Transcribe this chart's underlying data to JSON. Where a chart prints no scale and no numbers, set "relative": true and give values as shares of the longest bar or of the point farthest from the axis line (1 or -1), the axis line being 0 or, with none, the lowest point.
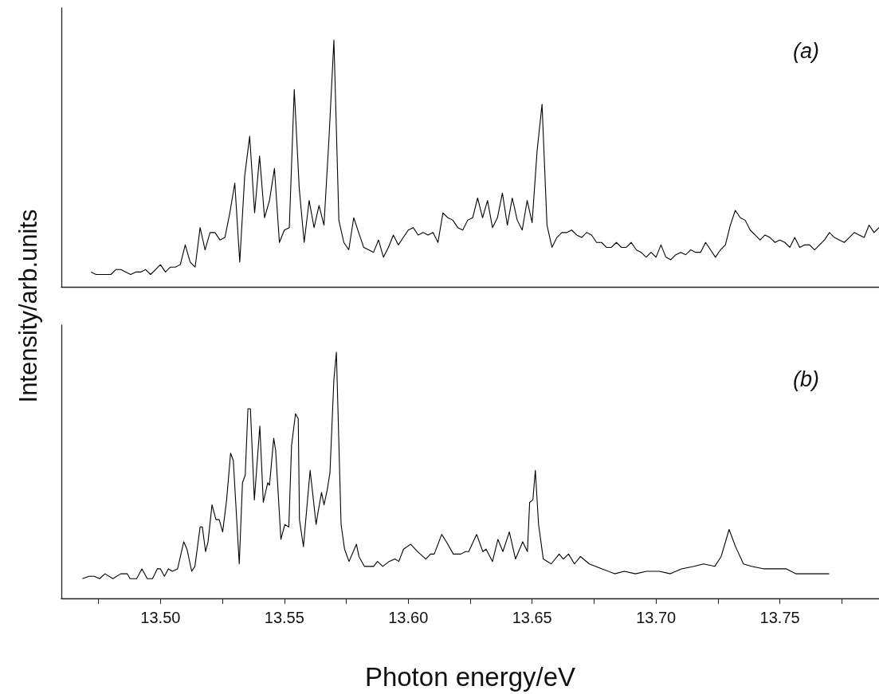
{
  "chart_data": [
    {
      "type": "line",
      "relative": true,
      "tick_labels": false,
      "ylabel": "Intensity/arb.units",
      "annotations": [
        "(a)"
      ],
      "categories": [
        null,
        null,
        null,
        null,
        null,
        null,
        null,
        null,
        null,
        null,
        null,
        null,
        null,
        null,
        null,
        null,
        null,
        null,
        null,
        null,
        null,
        null,
        null,
        null,
        null,
        null,
        null,
        null,
        null,
        null,
        null,
        null,
        null,
        null,
        null,
        null,
        null,
        null,
        null,
        null,
        null,
        null,
        null,
        null,
        null,
        null,
        null,
        null,
        null,
        null,
        null,
        null,
        null,
        null,
        null,
        null,
        null,
        null,
        null,
        null,
        null,
        null,
        null,
        null,
        null,
        null,
        null,
        null,
        null,
        null,
        null,
        null,
        null,
        null,
        null,
        null,
        null,
        null,
        null,
        null,
        null,
        null,
        null,
        null,
        null,
        null,
        null,
        null,
        null,
        null,
        null,
        null,
        null,
        null,
        null,
        null,
        null,
        null,
        null,
        null,
        null,
        null,
        null,
        null,
        null,
        null,
        null,
        null,
        null,
        null,
        null,
        null,
        null,
        null,
        null,
        null,
        null,
        null,
        null,
        null,
        null,
        null,
        null,
        null,
        null,
        null,
        null,
        null,
        null,
        null,
        null,
        null,
        null,
        null,
        null,
        null,
        null,
        null,
        null,
        null,
        null,
        null,
        null,
        null,
        null,
        null,
        null,
        null,
        null,
        null,
        null,
        null,
        null,
        null,
        null,
        null,
        null,
        null,
        null,
        null,
        null,
        null,
        null,
        null,
        null,
        null
      ],
      "series": [
        {
          "color": "#000000",
          "values": [
            null,
            null,
            null,
            null,
            null,
            null,
            0.06,
            0.05,
            0.05,
            0.05,
            0.05,
            0.07,
            0.07,
            0.06,
            0.05,
            0.06,
            0.06,
            0.07,
            0.05,
            0.07,
            0.09,
            0.06,
            0.08,
            0.08,
            0.09,
            0.17,
            0.1,
            0.08,
            0.24,
            0.15,
            0.22,
            0.22,
            0.19,
            0.2,
            0.3,
            0.42,
            0.1,
            0.45,
            0.61,
            0.3,
            0.53,
            0.28,
            0.35,
            0.48,
            0.18,
            0.23,
            0.24,
            0.8,
            0.4,
            0.18,
            0.35,
            0.24,
            0.33,
            0.25,
            0.6,
            1,
            0.27,
            0.18,
            0.15,
            0.28,
            0.22,
            0.16,
            0.15,
            0.14,
            0.19,
            0.12,
            0.16,
            0.21,
            0.17,
            0.2,
            0.23,
            0.24,
            0.21,
            0.22,
            0.21,
            0.22,
            0.18,
            0.3,
            0.28,
            0.27,
            0.24,
            0.23,
            0.27,
            0.28,
            0.36,
            0.28,
            0.35,
            0.24,
            0.28,
            0.38,
            0.25,
            0.36,
            0.27,
            0.23,
            0.35,
            0.26,
            0.55,
            0.74,
            0.25,
            0.16,
            0.2,
            0.22,
            0.22,
            0.23,
            0.21,
            0.2,
            0.22,
            0.21,
            0.18,
            0.18,
            0.16,
            0.16,
            0.18,
            0.16,
            0.16,
            0.18,
            0.15,
            0.14,
            0.12,
            0.14,
            0.12,
            0.17,
            0.12,
            0.11,
            0.13,
            0.14,
            0.13,
            0.15,
            0.14,
            0.14,
            0.18,
            0.15,
            0.12,
            0.15,
            0.17,
            0.25,
            0.31,
            0.28,
            0.27,
            0.23,
            0.21,
            0.19,
            0.21,
            0.2,
            0.18,
            0.19,
            0.18,
            0.16,
            0.2,
            0.16,
            0.17,
            0.17,
            0.15,
            0.17,
            0.19,
            0.22,
            0.2,
            0.19,
            0.18,
            0.2,
            0.22,
            0.21,
            0.2,
            0.25,
            0.22,
            0.24
          ]
        }
      ]
    },
    {
      "type": "line",
      "relative": true,
      "xlim": [
        13.46,
        13.79
      ],
      "tick_labels": "x",
      "xlabel": "Photon energy/eV",
      "annotations": [
        "(b)"
      ],
      "xticks": [
        {
          "value": 13.475,
          "label": null
        },
        {
          "value": 13.5,
          "label": "13.50"
        },
        {
          "value": 13.525,
          "label": null
        },
        13.55,
        {
          "value": 13.575,
          "label": null
        },
        {
          "value": 13.6,
          "label": "13.60"
        },
        {
          "value": 13.625,
          "label": null
        },
        13.65,
        {
          "value": 13.675,
          "label": null
        },
        {
          "value": 13.7,
          "label": "13.70"
        },
        {
          "value": 13.725,
          "label": null
        },
        13.75,
        {
          "value": 13.775,
          "label": null
        }
      ],
      "series": [
        {
          "color": "#000000",
          "x": [
            13.4685,
            13.4712,
            13.4733,
            13.4754,
            13.4776,
            13.4808,
            13.484,
            13.4866,
            13.4877,
            13.4904,
            13.4925,
            13.4947,
            13.4968,
            13.4987,
            13.5,
            13.5016,
            13.5032,
            13.5048,
            13.5069,
            13.5094,
            13.5107,
            13.5126,
            13.5139,
            13.516,
            13.5169,
            13.5182,
            13.5192,
            13.5208,
            13.5224,
            13.5237,
            13.5251,
            13.5267,
            13.5283,
            13.5294,
            13.5318,
            13.5331,
            13.5342,
            13.5353,
            13.5363,
            13.5379,
            13.5401,
            13.5415,
            13.5433,
            13.544,
            13.5457,
            13.5465,
            13.5486,
            13.5502,
            13.5518,
            13.5529,
            13.5545,
            13.5556,
            13.5561,
            13.5577,
            13.5604,
            13.5614,
            13.5628,
            13.5636,
            13.565,
            13.566,
            13.5673,
            13.5684,
            13.57,
            13.571,
            13.5716,
            13.5729,
            13.5743,
            13.5761,
            13.5791,
            13.5801,
            13.5823,
            13.5844,
            13.586,
            13.5876,
            13.5897,
            13.5923,
            13.5946,
            13.5962,
            13.5981,
            13.601,
            13.6038,
            13.6071,
            13.609,
            13.6105,
            13.6135,
            13.6154,
            13.6182,
            13.6212,
            13.6231,
            13.6244,
            13.6276,
            13.6301,
            13.6314,
            13.634,
            13.6362,
            13.6382,
            13.6408,
            13.6433,
            13.6462,
            13.6481,
            13.649,
            13.6503,
            13.6513,
            13.6526,
            13.6545,
            13.6577,
            13.6609,
            13.6626,
            13.6647,
            13.6671,
            13.6695,
            13.6731,
            13.6782,
            13.6833,
            13.6872,
            13.6917,
            13.6962,
            13.7013,
            13.7058,
            13.7103,
            13.7154,
            13.7192,
            13.7237,
            13.7263,
            13.7295,
            13.7321,
            13.7353,
            13.7385,
            13.7436,
            13.7487,
            13.7526,
            13.7564,
            13.7628,
            13.7699
          ],
          "values": [
            0.08,
            0.09,
            0.09,
            0.08,
            0.1,
            0.08,
            0.1,
            0.1,
            0.08,
            0.08,
            0.12,
            0.08,
            0.08,
            0.12,
            0.12,
            0.09,
            0.12,
            0.11,
            0.12,
            0.23,
            0.2,
            0.11,
            0.13,
            0.29,
            0.29,
            0.19,
            0.23,
            0.38,
            0.32,
            0.32,
            0.27,
            0.4,
            0.59,
            0.56,
            0.14,
            0.47,
            0.5,
            0.77,
            0.77,
            0.4,
            0.7,
            0.39,
            0.47,
            0.46,
            0.65,
            0.6,
            0.24,
            0.3,
            0.29,
            0.62,
            0.75,
            0.73,
            0.32,
            0.21,
            0.52,
            0.43,
            0.3,
            0.35,
            0.43,
            0.38,
            0.44,
            0.51,
            0.89,
            1,
            0.78,
            0.3,
            0.2,
            0.15,
            0.22,
            0.17,
            0.13,
            0.13,
            0.13,
            0.15,
            0.13,
            0.15,
            0.16,
            0.15,
            0.2,
            0.22,
            0.19,
            0.16,
            0.18,
            0.18,
            0.26,
            0.23,
            0.18,
            0.18,
            0.19,
            0.19,
            0.26,
            0.19,
            0.2,
            0.15,
            0.24,
            0.19,
            0.27,
            0.16,
            0.23,
            0.19,
            0.39,
            0.4,
            0.52,
            0.3,
            0.16,
            0.14,
            0.18,
            0.16,
            0.18,
            0.14,
            0.17,
            0.14,
            0.12,
            0.1,
            0.11,
            0.1,
            0.11,
            0.11,
            0.1,
            0.12,
            0.13,
            0.14,
            0.13,
            0.17,
            0.28,
            0.21,
            0.14,
            0.13,
            0.12,
            0.12,
            0.12,
            0.1,
            0.1,
            0.1
          ]
        }
      ]
    }
  ]
}
